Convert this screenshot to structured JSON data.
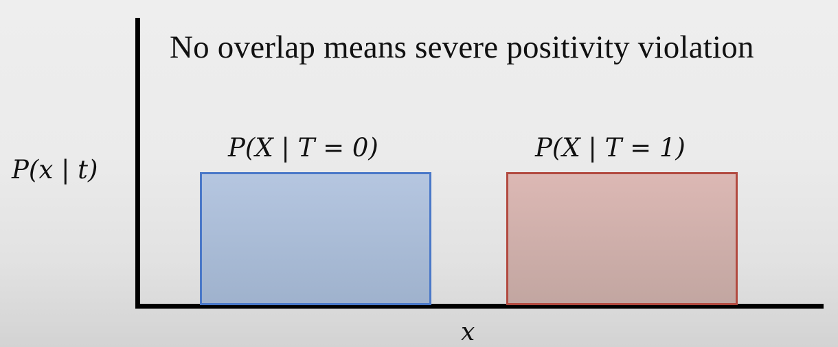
{
  "title": "No overlap means severe positivity violation",
  "y_axis_label": "P(x | t)",
  "x_axis_label": "x",
  "distributions": [
    {
      "label": "P(X | T = 0)",
      "fill": "#b5c6e0",
      "fill_bottom": "#9fb2cd",
      "stroke": "#4a78c8"
    },
    {
      "label": "P(X | T = 1)",
      "fill": "#dcb8b4",
      "fill_bottom": "#c2a6a1",
      "stroke": "#b24a40"
    }
  ]
}
